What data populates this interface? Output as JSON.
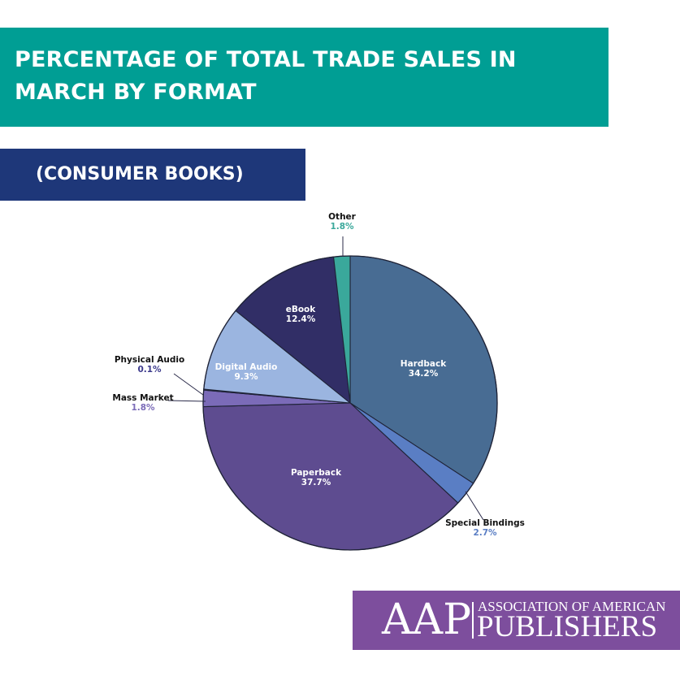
{
  "header": {
    "title_lines": [
      "PERCENTAGE OF TOTAL TRADE SALES IN",
      "MARCH BY FORMAT"
    ],
    "subtitle": "(CONSUMER BOOKS)"
  },
  "chart_data": {
    "type": "pie",
    "title": "PERCENTAGE OF TOTAL TRADE SALES IN MARCH BY FORMAT",
    "subtitle": "(CONSUMER BOOKS)",
    "slices": [
      {
        "label": "Hardback",
        "value": 34.2,
        "value_label": "34.2%",
        "color": "#486c93"
      },
      {
        "label": "Special Bindings",
        "value": 2.7,
        "value_label": "2.7%",
        "color": "#5a7ec4"
      },
      {
        "label": "Paperback",
        "value": 37.7,
        "value_label": "37.7%",
        "color": "#5e4c90"
      },
      {
        "label": "Mass Market",
        "value": 1.8,
        "value_label": "1.8%",
        "color": "#7b6bb8"
      },
      {
        "label": "Physical Audio",
        "value": 0.1,
        "value_label": "0.1%",
        "color": "#3c3a8c"
      },
      {
        "label": "Digital Audio",
        "value": 9.3,
        "value_label": "9.3%",
        "color": "#9bb5e0"
      },
      {
        "label": "eBook",
        "value": 12.4,
        "value_label": "12.4%",
        "color": "#312e66"
      },
      {
        "label": "Other",
        "value": 1.8,
        "value_label": "1.8%",
        "color": "#3aa89b"
      }
    ]
  },
  "logo": {
    "acronym": "AAP",
    "line1": "ASSOCIATION OF AMERICAN",
    "line2": "PUBLISHERS",
    "bg_color": "#7d4e9d"
  }
}
